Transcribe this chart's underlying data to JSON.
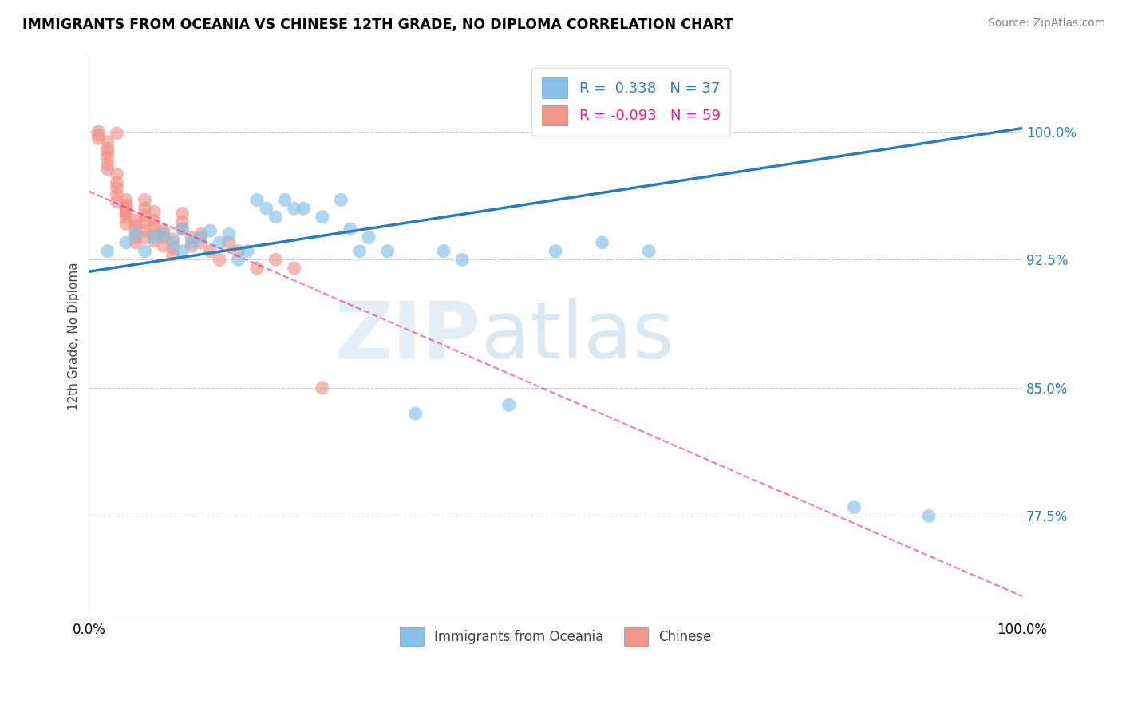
{
  "title": "IMMIGRANTS FROM OCEANIA VS CHINESE 12TH GRADE, NO DIPLOMA CORRELATION CHART",
  "source": "Source: ZipAtlas.com",
  "ylabel": "12th Grade, No Diploma",
  "y_ticks": [
    0.775,
    0.85,
    0.925,
    1.0
  ],
  "y_tick_labels": [
    "77.5%",
    "85.0%",
    "92.5%",
    "100.0%"
  ],
  "xlim": [
    0.0,
    1.0
  ],
  "ylim": [
    0.715,
    1.045
  ],
  "legend_blue_r": "0.338",
  "legend_blue_n": "37",
  "legend_pink_r": "-0.093",
  "legend_pink_n": "59",
  "blue_color": "#85c1e9",
  "pink_color": "#f1948a",
  "blue_line_color": "#2980b9",
  "pink_line_color": "#e91e8c",
  "watermark_zip": "ZIP",
  "watermark_atlas": "atlas",
  "blue_scatter_x": [
    0.02,
    0.04,
    0.05,
    0.06,
    0.07,
    0.08,
    0.09,
    0.1,
    0.1,
    0.11,
    0.12,
    0.13,
    0.14,
    0.15,
    0.16,
    0.17,
    0.18,
    0.19,
    0.2,
    0.21,
    0.22,
    0.23,
    0.25,
    0.27,
    0.28,
    0.29,
    0.3,
    0.32,
    0.35,
    0.38,
    0.4,
    0.45,
    0.5,
    0.55,
    0.6,
    0.82,
    0.9
  ],
  "blue_scatter_y": [
    0.93,
    0.935,
    0.94,
    0.93,
    0.938,
    0.94,
    0.935,
    0.943,
    0.93,
    0.935,
    0.938,
    0.942,
    0.935,
    0.94,
    0.925,
    0.93,
    0.96,
    0.955,
    0.95,
    0.96,
    0.955,
    0.955,
    0.95,
    0.96,
    0.943,
    0.93,
    0.938,
    0.93,
    0.835,
    0.93,
    0.925,
    0.84,
    0.93,
    0.935,
    0.93,
    0.78,
    0.775
  ],
  "pink_scatter_x": [
    0.01,
    0.01,
    0.01,
    0.02,
    0.02,
    0.02,
    0.02,
    0.02,
    0.02,
    0.03,
    0.03,
    0.03,
    0.03,
    0.03,
    0.03,
    0.04,
    0.04,
    0.04,
    0.04,
    0.04,
    0.04,
    0.04,
    0.05,
    0.05,
    0.05,
    0.05,
    0.05,
    0.06,
    0.06,
    0.06,
    0.06,
    0.06,
    0.06,
    0.07,
    0.07,
    0.07,
    0.07,
    0.07,
    0.08,
    0.08,
    0.08,
    0.09,
    0.09,
    0.09,
    0.1,
    0.1,
    0.1,
    0.11,
    0.11,
    0.12,
    0.12,
    0.13,
    0.14,
    0.15,
    0.16,
    0.18,
    0.2,
    0.22,
    0.25
  ],
  "pink_scatter_y": [
    1.0,
    0.998,
    0.996,
    0.994,
    0.99,
    0.988,
    0.985,
    0.981,
    0.978,
    0.975,
    0.97,
    0.967,
    0.963,
    0.959,
    0.999,
    0.957,
    0.953,
    0.95,
    0.946,
    0.96,
    0.955,
    0.952,
    0.948,
    0.945,
    0.942,
    0.938,
    0.935,
    0.96,
    0.955,
    0.951,
    0.947,
    0.942,
    0.938,
    0.953,
    0.948,
    0.944,
    0.94,
    0.936,
    0.942,
    0.938,
    0.933,
    0.937,
    0.932,
    0.928,
    0.952,
    0.947,
    0.943,
    0.938,
    0.933,
    0.94,
    0.935,
    0.93,
    0.925,
    0.935,
    0.93,
    0.92,
    0.925,
    0.92,
    0.85
  ],
  "blue_trend_x": [
    0.0,
    1.0
  ],
  "blue_trend_y": [
    0.918,
    1.002
  ],
  "pink_trend_x": [
    0.0,
    1.0
  ],
  "pink_trend_y": [
    0.965,
    0.728
  ]
}
